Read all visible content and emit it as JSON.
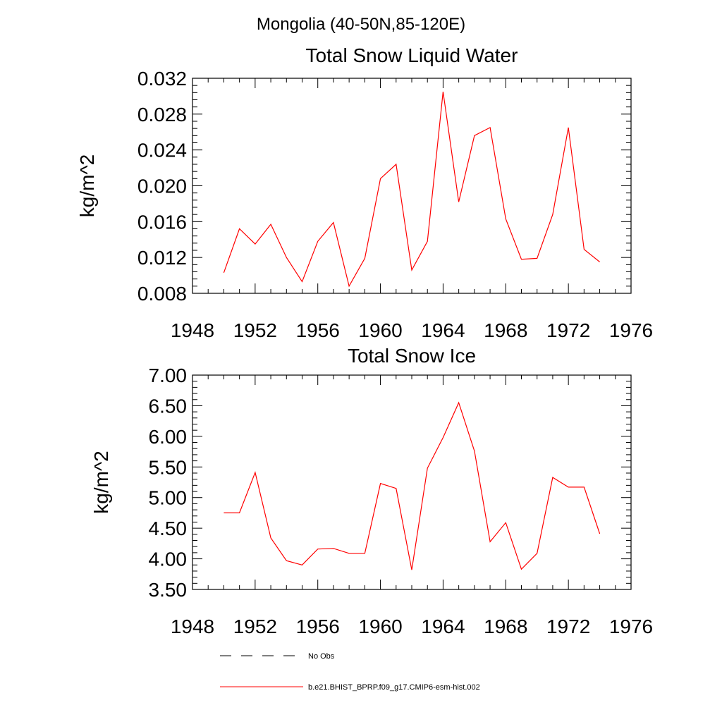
{
  "header": {
    "region": "Mongolia (40-50N,85-120E)"
  },
  "chart_data": [
    {
      "type": "line",
      "title": "Total Snow Liquid Water",
      "ylabel": "kg/m^2",
      "xlim": [
        1948,
        1976
      ],
      "ylim": [
        0.008,
        0.032
      ],
      "xticks": [
        "1948",
        "1952",
        "1956",
        "1960",
        "1964",
        "1968",
        "1972",
        "1976"
      ],
      "yticks": [
        "0.008",
        "0.012",
        "0.016",
        "0.020",
        "0.024",
        "0.028",
        "0.032"
      ],
      "x": [
        1950,
        1951,
        1952,
        1953,
        1954,
        1955,
        1956,
        1957,
        1958,
        1959,
        1960,
        1961,
        1962,
        1963,
        1964,
        1965,
        1966,
        1967,
        1968,
        1969,
        1970,
        1971,
        1972,
        1973,
        1974
      ],
      "series": [
        {
          "name": "b.e21.BHIST_BPRP.f09_g17.CMIP6-esm-hist.002",
          "color": "#ff0000",
          "values": [
            0.0103,
            0.0152,
            0.0135,
            0.0157,
            0.012,
            0.0093,
            0.0138,
            0.0159,
            0.0088,
            0.0119,
            0.0208,
            0.0224,
            0.0106,
            0.0138,
            0.0305,
            0.0182,
            0.0256,
            0.0265,
            0.0163,
            0.0118,
            0.0119,
            0.0168,
            0.0265,
            0.0129,
            0.0115
          ]
        }
      ]
    },
    {
      "type": "line",
      "title": "Total Snow Ice",
      "ylabel": "kg/m^2",
      "xlim": [
        1948,
        1976
      ],
      "ylim": [
        3.5,
        7.0
      ],
      "xticks": [
        "1948",
        "1952",
        "1956",
        "1960",
        "1964",
        "1968",
        "1972",
        "1976"
      ],
      "yticks": [
        "3.50",
        "4.00",
        "4.50",
        "5.00",
        "5.50",
        "6.00",
        "6.50",
        "7.00"
      ],
      "x": [
        1950,
        1951,
        1952,
        1953,
        1954,
        1955,
        1956,
        1957,
        1958,
        1959,
        1960,
        1961,
        1962,
        1963,
        1964,
        1965,
        1966,
        1967,
        1968,
        1969,
        1970,
        1971,
        1972,
        1973,
        1974
      ],
      "series": [
        {
          "name": "b.e21.BHIST_BPRP.f09_g17.CMIP6-esm-hist.002",
          "color": "#ff0000",
          "values": [
            4.75,
            4.75,
            5.41,
            4.34,
            3.97,
            3.9,
            4.16,
            4.17,
            4.09,
            4.09,
            5.23,
            5.15,
            3.82,
            5.48,
            5.98,
            6.55,
            5.76,
            4.28,
            4.59,
            3.83,
            4.09,
            5.33,
            5.17,
            5.17,
            4.41
          ]
        }
      ]
    }
  ],
  "legend": {
    "entries": [
      {
        "label": "No Obs",
        "style": "dashed",
        "color": "#000000"
      },
      {
        "label": "b.e21.BHIST_BPRP.f09_g17.CMIP6-esm-hist.002",
        "style": "solid",
        "color": "#ff0000"
      }
    ]
  }
}
